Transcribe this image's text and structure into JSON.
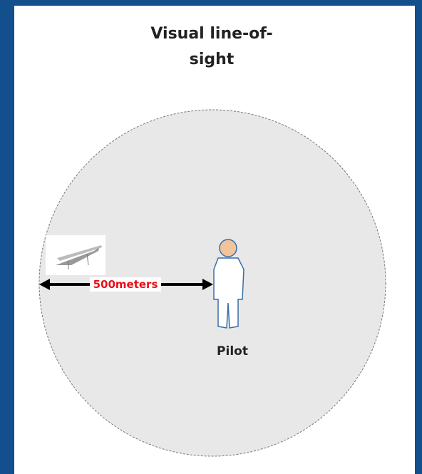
{
  "title": "Visual line-of-sight",
  "distance_label": "500meters",
  "person_label": "Pilot"
}
